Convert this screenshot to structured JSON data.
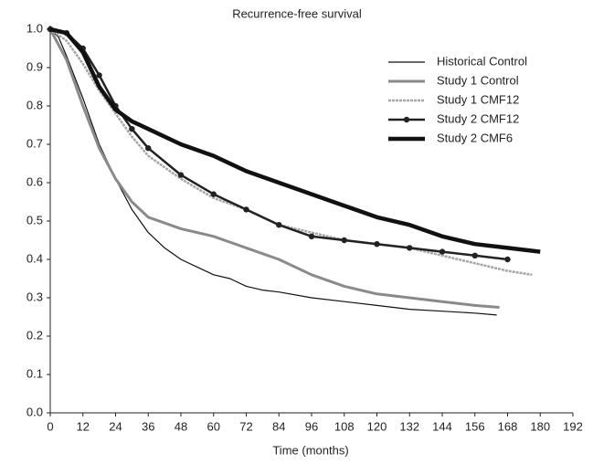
{
  "chart_data": {
    "type": "line",
    "title": "Recurrence-free survival",
    "x_label": "Time (months)",
    "xlim": [
      0,
      192
    ],
    "ylim": [
      0,
      1
    ],
    "xticks": [
      0,
      12,
      24,
      36,
      48,
      60,
      72,
      84,
      96,
      108,
      120,
      132,
      144,
      156,
      168,
      180,
      192
    ],
    "yticks": [
      {
        "value": 0,
        "label": "0.0"
      },
      0.1,
      0.2,
      0.3,
      0.4,
      0.5,
      0.6,
      0.7,
      0.8,
      0.9,
      {
        "value": 1,
        "label": "1.0"
      }
    ],
    "legend": "upper right",
    "series": [
      {
        "name": "Historical Control",
        "color": "#111111",
        "width": 1.2,
        "dash": "",
        "x": [
          0,
          3,
          6,
          12,
          18,
          24,
          30,
          36,
          42,
          48,
          54,
          60,
          66,
          72,
          78,
          84,
          96,
          108,
          120,
          132,
          144,
          156,
          164
        ],
        "values": [
          1.0,
          0.98,
          0.93,
          0.82,
          0.7,
          0.61,
          0.53,
          0.47,
          0.43,
          0.4,
          0.38,
          0.36,
          0.35,
          0.33,
          0.32,
          0.315,
          0.3,
          0.29,
          0.28,
          0.27,
          0.265,
          0.26,
          0.255
        ]
      },
      {
        "name": "Study 1 Control",
        "color": "#8a8a8a",
        "width": 3,
        "dash": "",
        "x": [
          0,
          6,
          12,
          18,
          24,
          30,
          36,
          48,
          60,
          72,
          84,
          96,
          108,
          120,
          132,
          144,
          156,
          165
        ],
        "values": [
          1.0,
          0.92,
          0.8,
          0.69,
          0.61,
          0.55,
          0.51,
          0.48,
          0.46,
          0.43,
          0.4,
          0.36,
          0.33,
          0.31,
          0.3,
          0.29,
          0.28,
          0.275
        ]
      },
      {
        "name": "Study 1 CMF12",
        "color": "#a5a5a5",
        "width": 2.5,
        "dash": "3 1",
        "x": [
          0,
          6,
          12,
          18,
          24,
          30,
          36,
          48,
          60,
          72,
          84,
          96,
          108,
          120,
          132,
          144,
          156,
          168,
          177
        ],
        "values": [
          1.0,
          0.97,
          0.91,
          0.84,
          0.78,
          0.72,
          0.67,
          0.61,
          0.56,
          0.53,
          0.49,
          0.47,
          0.45,
          0.44,
          0.43,
          0.41,
          0.39,
          0.37,
          0.36
        ]
      },
      {
        "name": "Study 2 CMF12",
        "color": "#222222",
        "width": 2.5,
        "dash": "",
        "markers": true,
        "x": [
          0,
          6,
          12,
          18,
          24,
          30,
          36,
          48,
          60,
          72,
          84,
          96,
          108,
          120,
          132,
          144,
          156,
          168
        ],
        "values": [
          1.0,
          0.99,
          0.95,
          0.88,
          0.8,
          0.74,
          0.69,
          0.62,
          0.57,
          0.53,
          0.49,
          0.46,
          0.45,
          0.44,
          0.43,
          0.42,
          0.41,
          0.4
        ]
      },
      {
        "name": "Study 2 CMF6",
        "color": "#111111",
        "width": 4.5,
        "dash": "",
        "x": [
          0,
          6,
          12,
          18,
          24,
          30,
          36,
          48,
          60,
          72,
          84,
          96,
          108,
          120,
          132,
          144,
          156,
          168,
          180
        ],
        "values": [
          1.0,
          0.99,
          0.94,
          0.85,
          0.79,
          0.76,
          0.74,
          0.7,
          0.67,
          0.63,
          0.6,
          0.57,
          0.54,
          0.51,
          0.49,
          0.46,
          0.44,
          0.43,
          0.42
        ]
      }
    ]
  }
}
